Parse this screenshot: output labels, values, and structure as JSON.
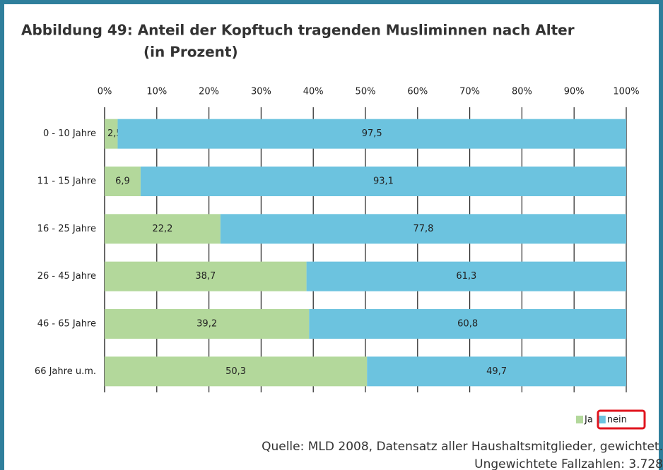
{
  "chart_data": {
    "type": "stacked-barh",
    "title": "Abbildung 49: Anteil der Kopftuch tragenden Musliminnen nach Alter",
    "subtitle": "(in Prozent)",
    "categories": [
      "0 - 10 Jahre",
      "11 - 15 Jahre",
      "16 - 25 Jahre",
      "26 - 45 Jahre",
      "46 - 65 Jahre",
      "66 Jahre u.m."
    ],
    "series": [
      {
        "name": "Ja",
        "color": "#b3d89b",
        "values": [
          2.5,
          6.9,
          22.2,
          38.7,
          39.2,
          50.3
        ],
        "value_labels": [
          "2,5",
          "6,9",
          "22,2",
          "38,7",
          "39,2",
          "50,3"
        ]
      },
      {
        "name": "nein",
        "color": "#6cc3df",
        "values": [
          97.5,
          93.1,
          77.8,
          61.3,
          60.8,
          49.7
        ],
        "value_labels": [
          "97,5",
          "93,1",
          "77,8",
          "61,3",
          "60,8",
          "49,7"
        ]
      }
    ],
    "xlim": [
      0,
      100
    ],
    "xticks": [
      {
        "value": 0,
        "label": "0%"
      },
      {
        "value": 10,
        "label": "10%"
      },
      {
        "value": 20,
        "label": "20%"
      },
      {
        "value": 30,
        "label": "30%"
      },
      {
        "value": 40,
        "label": "40%"
      },
      {
        "value": 50,
        "label": "50%"
      },
      {
        "value": 60,
        "label": "60%"
      },
      {
        "value": 70,
        "label": "70%"
      },
      {
        "value": 80,
        "label": "80%"
      },
      {
        "value": 90,
        "label": "90%"
      },
      {
        "value": 100,
        "label": "100%"
      }
    ],
    "grid": true,
    "legend": "bottom-right",
    "notes": [
      "Quelle: MLD 2008, Datensatz aller Haushaltsmitglieder, gewichtet.",
      "Ungewichtete Fallzahlen: 3.728"
    ]
  }
}
